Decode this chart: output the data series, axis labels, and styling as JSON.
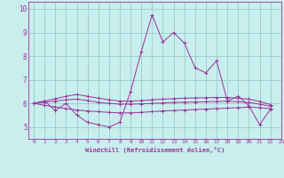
{
  "xlabel": "Windchill (Refroidissement éolien,°C)",
  "xlim": [
    -0.5,
    23
  ],
  "ylim": [
    4.5,
    10.3
  ],
  "xticks": [
    0,
    1,
    2,
    3,
    4,
    5,
    6,
    7,
    8,
    9,
    10,
    11,
    12,
    13,
    14,
    15,
    16,
    17,
    18,
    19,
    20,
    21,
    22,
    23
  ],
  "yticks": [
    5,
    6,
    7,
    8,
    9,
    10
  ],
  "bg_color": "#c8eeee",
  "line_color": "#993399",
  "grid_color": "#99cccc",
  "series": [
    [
      6.0,
      6.1,
      5.7,
      6.0,
      5.5,
      5.2,
      5.1,
      5.0,
      5.2,
      6.5,
      8.2,
      9.75,
      8.6,
      9.0,
      8.55,
      7.5,
      7.3,
      7.8,
      6.1,
      6.3,
      5.9,
      5.1,
      5.75
    ],
    [
      6.0,
      5.92,
      5.85,
      5.78,
      5.72,
      5.68,
      5.65,
      5.62,
      5.6,
      5.6,
      5.62,
      5.65,
      5.68,
      5.7,
      5.72,
      5.74,
      5.76,
      5.78,
      5.8,
      5.82,
      5.84,
      5.82,
      5.78
    ],
    [
      6.0,
      6.05,
      6.1,
      6.15,
      6.18,
      6.12,
      6.05,
      6.0,
      5.97,
      5.97,
      5.98,
      6.0,
      6.02,
      6.04,
      6.05,
      6.06,
      6.07,
      6.08,
      6.09,
      6.07,
      6.04,
      5.97,
      5.88
    ],
    [
      6.0,
      6.1,
      6.2,
      6.3,
      6.38,
      6.3,
      6.22,
      6.15,
      6.1,
      6.1,
      6.12,
      6.15,
      6.18,
      6.2,
      6.22,
      6.23,
      6.24,
      6.25,
      6.25,
      6.22,
      6.18,
      6.08,
      5.95
    ]
  ]
}
